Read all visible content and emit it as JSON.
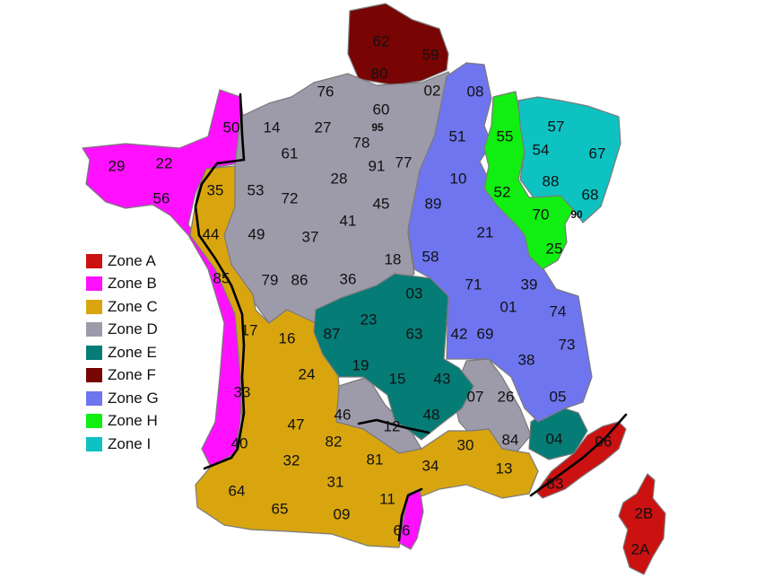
{
  "colors": {
    "zone_a": "#cc1111",
    "zone_b": "#ff11ff",
    "zone_c": "#d9a50f",
    "zone_d": "#9d9aaa",
    "zone_e": "#067c76",
    "zone_f": "#780404",
    "zone_g": "#6f75ee",
    "zone_h": "#11ee11",
    "zone_i": "#0ec2c2"
  },
  "legend": [
    {
      "label": "Zone A",
      "color": "#cc1111"
    },
    {
      "label": "Zone B",
      "color": "#ff11ff"
    },
    {
      "label": "Zone C",
      "color": "#d9a50f"
    },
    {
      "label": "Zone D",
      "color": "#9d9aaa"
    },
    {
      "label": "Zone E",
      "color": "#067c76"
    },
    {
      "label": "Zone F",
      "color": "#780404"
    },
    {
      "label": "Zone G",
      "color": "#6f75ee"
    },
    {
      "label": "Zone H",
      "color": "#11ee11"
    },
    {
      "label": "Zone I",
      "color": "#0ec2c2"
    }
  ],
  "departments": {
    "d62": "62",
    "d59": "59",
    "d80": "80",
    "d02": "02",
    "d08": "08",
    "d76": "76",
    "d60": "60",
    "d95": "95",
    "d50": "50",
    "d14": "14",
    "d27": "27",
    "d78": "78",
    "d61": "61",
    "d91": "91",
    "d77": "77",
    "d28": "28",
    "d51": "51",
    "d55": "55",
    "d57": "57",
    "d54": "54",
    "d67": "67",
    "d29": "29",
    "d22": "22",
    "d56": "56",
    "d35": "35",
    "d53": "53",
    "d72": "72",
    "d45": "45",
    "d10": "10",
    "d52": "52",
    "d88": "88",
    "d68": "68",
    "d90": "90",
    "d89": "89",
    "d70": "70",
    "d41": "41",
    "d49": "49",
    "d37": "37",
    "d44": "44",
    "d21": "21",
    "d25": "25",
    "d18": "18",
    "d58": "58",
    "d85": "85",
    "d79": "79",
    "d86": "86",
    "d36": "36",
    "d71": "71",
    "d39": "39",
    "d03": "03",
    "d01": "01",
    "d74": "74",
    "d23": "23",
    "d87": "87",
    "d17": "17",
    "d16": "16",
    "d63": "63",
    "d42": "42",
    "d69": "69",
    "d73": "73",
    "d19": "19",
    "d24": "24",
    "d38": "38",
    "d15": "15",
    "d43": "43",
    "d33": "33",
    "d07": "07",
    "d26": "26",
    "d05": "05",
    "d46": "46",
    "d48": "48",
    "d47": "47",
    "d12": "12",
    "d84": "84",
    "d04": "04",
    "d06": "06",
    "d40": "40",
    "d82": "82",
    "d30": "30",
    "d81": "81",
    "d32": "32",
    "d34": "34",
    "d13": "13",
    "d83": "83",
    "d31": "31",
    "d64": "64",
    "d11": "11",
    "d65": "65",
    "d09": "09",
    "d66": "66",
    "d2B": "2B",
    "d2A": "2A"
  }
}
